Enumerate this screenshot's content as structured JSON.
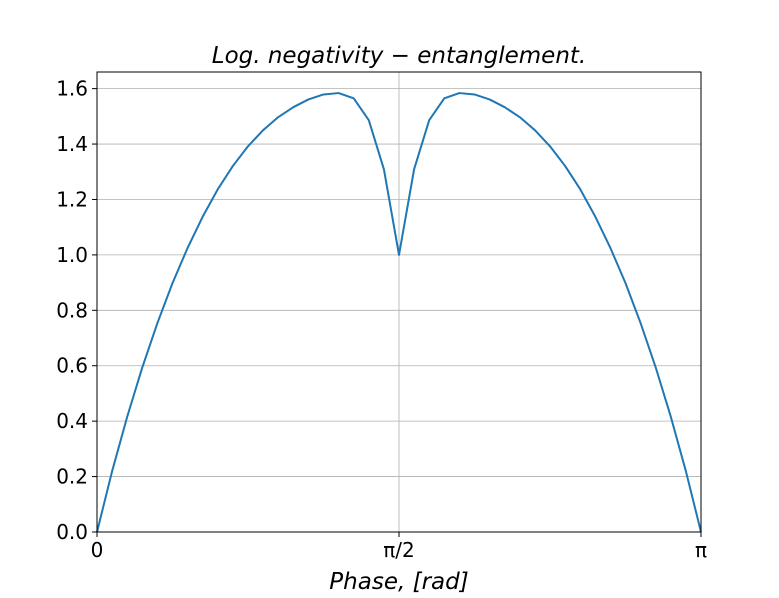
{
  "chart_data": {
    "type": "line",
    "title": "Log. negativity − entanglement.",
    "xlabel": "Phase, [rad]",
    "ylabel": "",
    "xlim": [
      0,
      3.14159
    ],
    "ylim": [
      0,
      1.66
    ],
    "xticks": [
      {
        "value": 0,
        "label": "0"
      },
      {
        "value": 1.5708,
        "label": "π/2"
      },
      {
        "value": 3.14159,
        "label": "π"
      }
    ],
    "yticks": [
      {
        "value": 0.0,
        "label": "0.0"
      },
      {
        "value": 0.2,
        "label": "0.2"
      },
      {
        "value": 0.4,
        "label": "0.4"
      },
      {
        "value": 0.6,
        "label": "0.6"
      },
      {
        "value": 0.8,
        "label": "0.8"
      },
      {
        "value": 1.0,
        "label": "1.0"
      },
      {
        "value": 1.2,
        "label": "1.2"
      },
      {
        "value": 1.4,
        "label": "1.4"
      },
      {
        "value": 1.6,
        "label": "1.6"
      }
    ],
    "grid": true,
    "series": [
      {
        "color": "#1f77b4",
        "x": [
          0,
          0.0785,
          0.1571,
          0.2356,
          0.3142,
          0.3927,
          0.4712,
          0.5498,
          0.6283,
          0.7069,
          0.7854,
          0.864,
          0.9425,
          1.021,
          1.0996,
          1.1781,
          1.2566,
          1.3352,
          1.4137,
          1.4923,
          1.5708,
          1.6493,
          1.7279,
          1.8064,
          1.885,
          1.9635,
          2.042,
          2.1206,
          2.1991,
          2.2777,
          2.3562,
          2.4347,
          2.5133,
          2.5918,
          2.6704,
          2.7489,
          2.8274,
          2.906,
          2.9845,
          3.0631,
          3.1416
        ],
        "y": [
          0.0,
          0.219,
          0.416,
          0.594,
          0.754,
          0.898,
          1.025,
          1.138,
          1.237,
          1.321,
          1.392,
          1.45,
          1.497,
          1.533,
          1.561,
          1.579,
          1.584,
          1.565,
          1.486,
          1.309,
          1.0,
          1.309,
          1.486,
          1.565,
          1.584,
          1.579,
          1.561,
          1.533,
          1.497,
          1.45,
          1.392,
          1.321,
          1.237,
          1.138,
          1.025,
          0.898,
          0.754,
          0.594,
          0.416,
          0.219,
          0.0
        ]
      }
    ]
  }
}
